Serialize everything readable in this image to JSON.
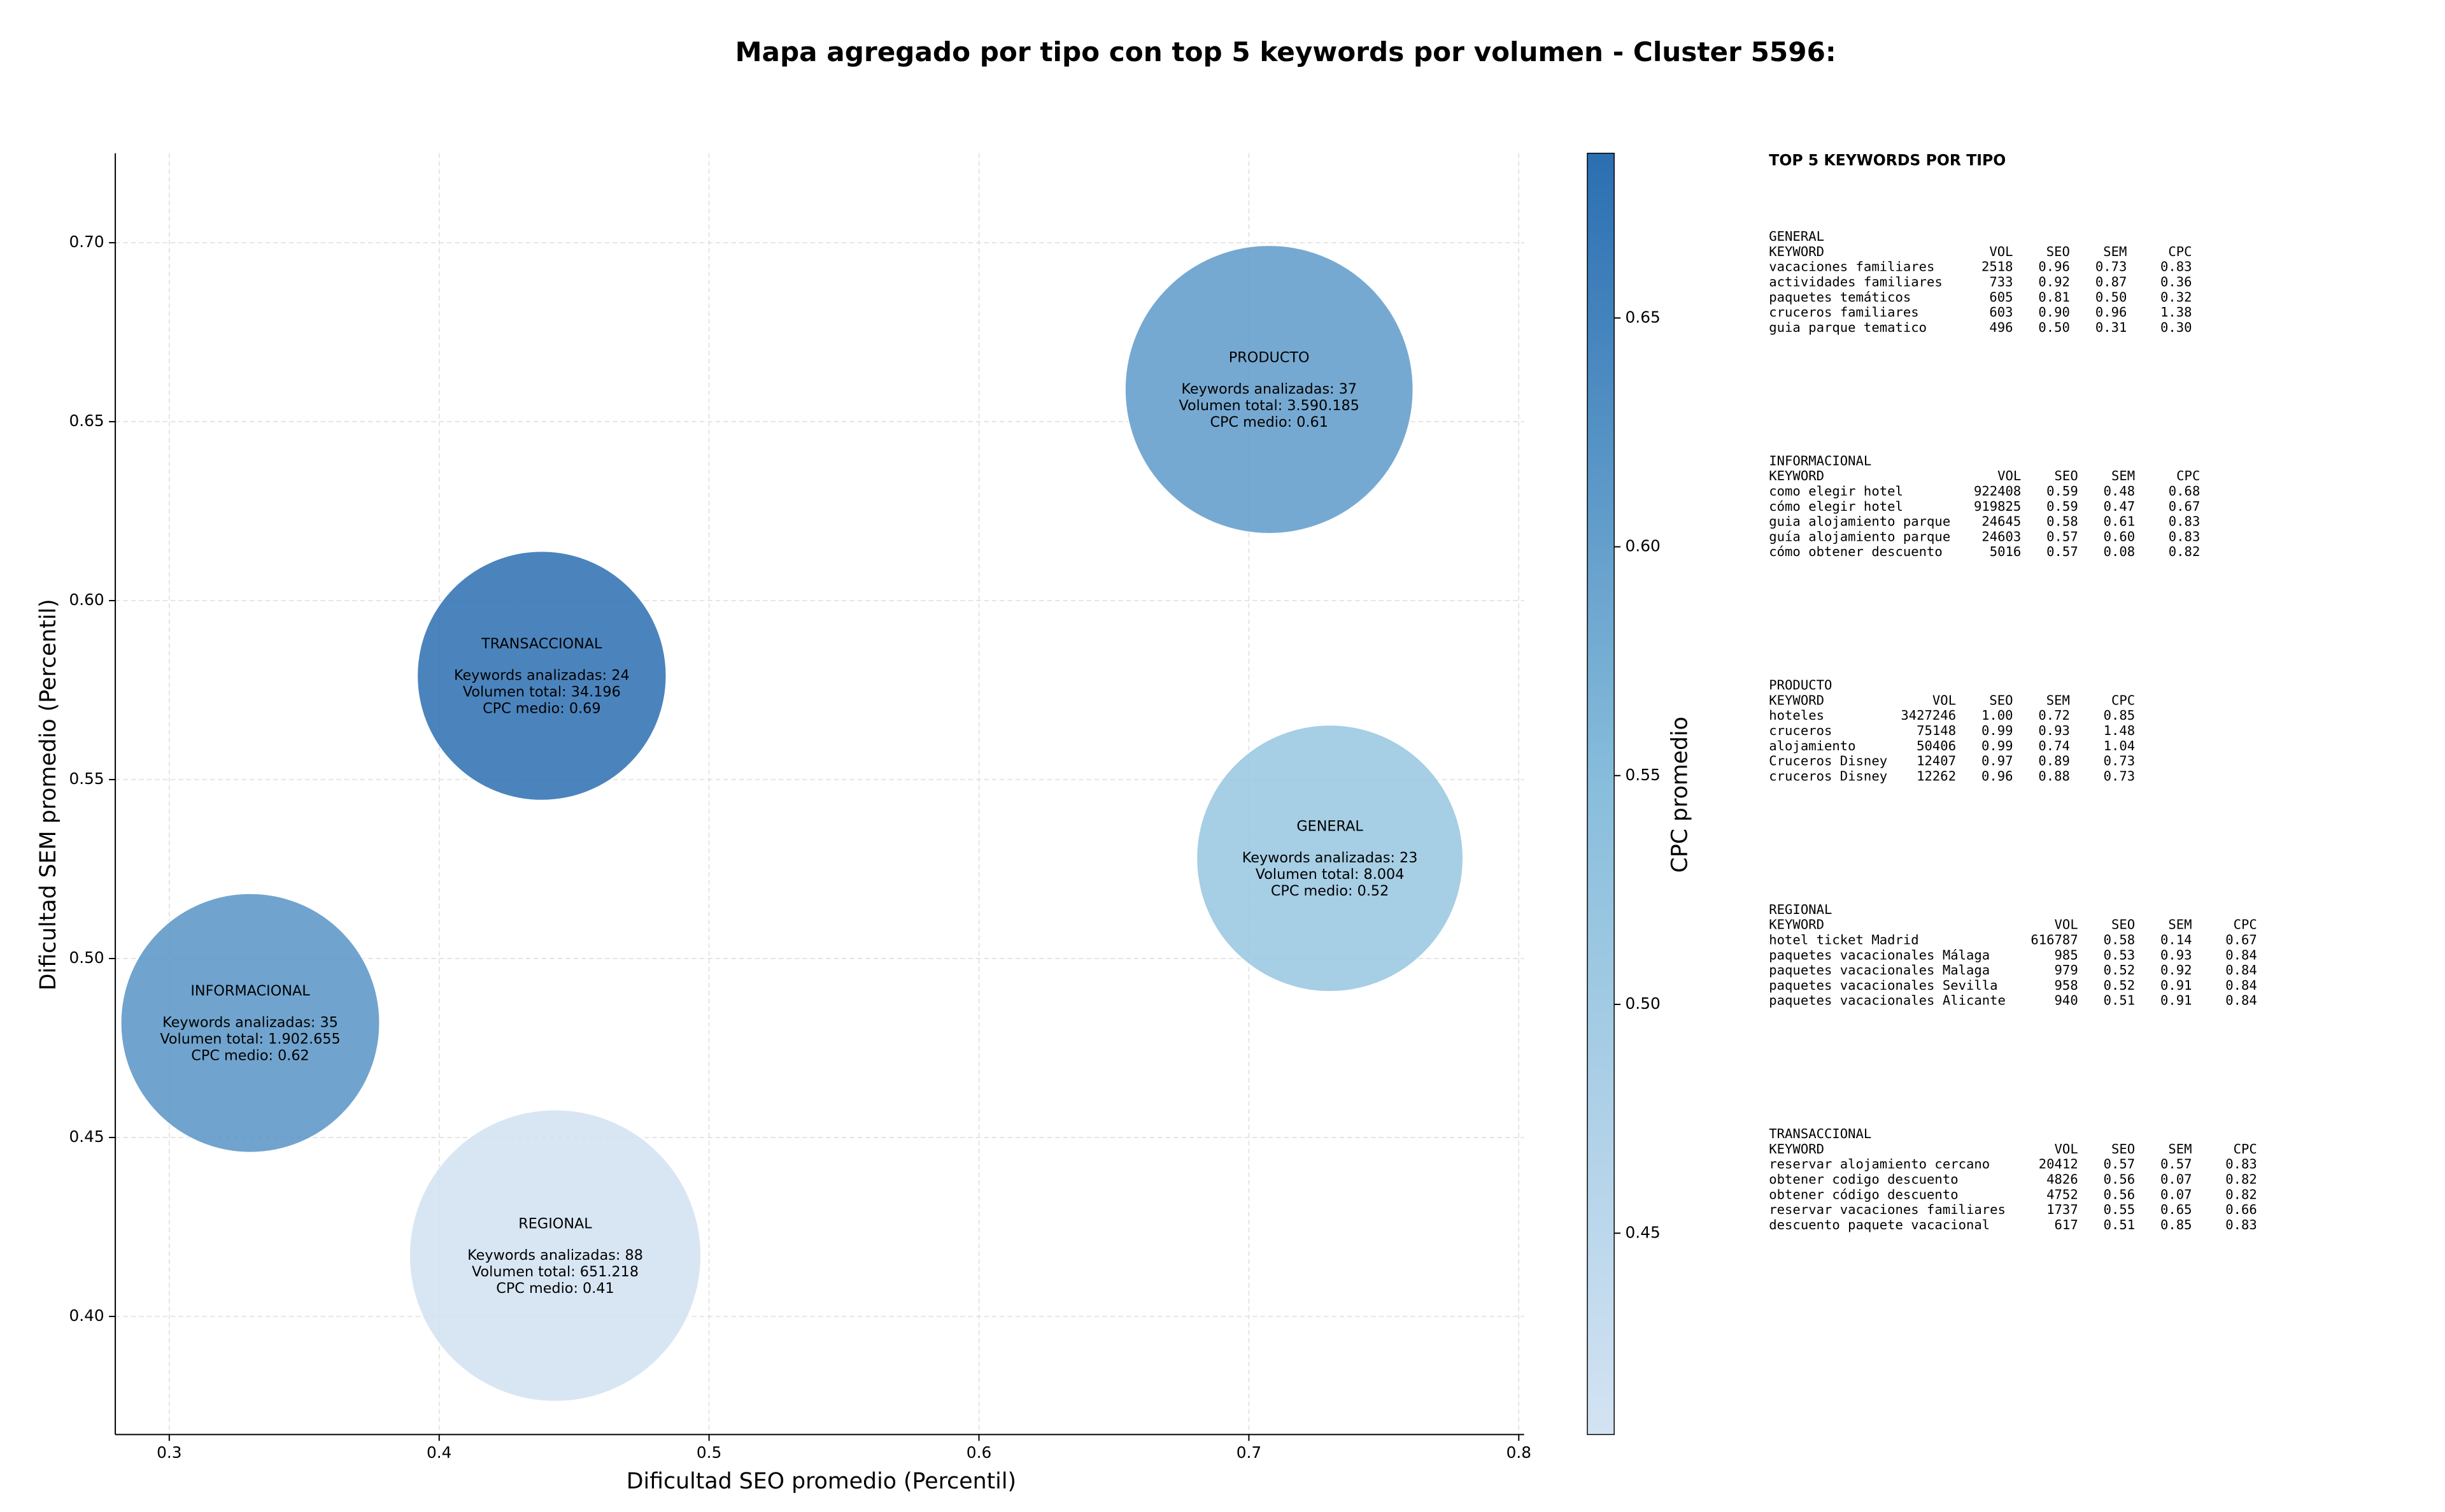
{
  "chart_data": {
    "type": "bubble",
    "title": "Mapa agregado por tipo con top 5 keywords por volumen - Cluster 5596:",
    "x_label": "Dificultad SEO promedio (Percentil)",
    "y_label": "Dificultad SEM promedio (Percentil)",
    "colorbar_label": "CPC promedio",
    "labels": [
      "PRODUCTO",
      "GENERAL",
      "TRANSACCIONAL",
      "INFORMACIONAL",
      "REGIONAL"
    ],
    "annotations": [
      [
        "Keywords analizadas: 37",
        "Volumen total: 3.590.185",
        "CPC medio: 0.61"
      ],
      [
        "Keywords analizadas: 23",
        "Volumen total: 8.004",
        "CPC medio: 0.52"
      ],
      [
        "Keywords analizadas: 24",
        "Volumen total: 34.196",
        "CPC medio: 0.69"
      ],
      [
        "Keywords analizadas: 35",
        "Volumen total: 1.902.655",
        "CPC medio: 0.62"
      ],
      [
        "Keywords analizadas: 88",
        "Volumen total: 651.218",
        "CPC medio: 0.41"
      ]
    ],
    "x": [
      0.7075,
      0.73,
      0.438,
      0.33,
      0.443
    ],
    "values": [
      0.659,
      0.528,
      0.579,
      0.482,
      0.417
    ],
    "sizes": [
      83,
      71,
      62,
      67,
      85
    ],
    "color_values": [
      0.61,
      0.52,
      0.69,
      0.62,
      0.41
    ],
    "colormap": [
      "#d3e3f3",
      "#89bedc",
      "#2b6fb2"
    ],
    "clim": [
      0.406,
      0.686
    ],
    "cticks": [
      0.45,
      {
        "value": 0.5,
        "label": "0.50"
      },
      0.55,
      {
        "value": 0.6,
        "label": "0.60"
      },
      0.65
    ],
    "xlim": [
      0.28,
      0.802
    ],
    "ylim": [
      0.367,
      0.725
    ],
    "xticks": [
      0.3,
      0.4,
      0.5,
      0.6,
      0.7,
      0.8
    ],
    "yticks": [
      {
        "value": 0.4,
        "label": "0.40"
      },
      0.45,
      {
        "value": 0.5,
        "label": "0.50"
      },
      0.55,
      {
        "value": 0.6,
        "label": "0.60"
      },
      0.65,
      {
        "value": 0.7,
        "label": "0.70"
      }
    ],
    "grid": true
  },
  "panel": {
    "title": "TOP 5 KEYWORDS POR TIPO",
    "sections": [
      {
        "name": "GENERAL",
        "header": [
          "KEYWORD",
          "VOL",
          "SEO",
          "SEM",
          "CPC"
        ],
        "rows": [
          [
            "vacaciones familiares",
            "2518",
            "0.96",
            "0.73",
            "0.83"
          ],
          [
            "actividades familiares",
            "733",
            "0.92",
            "0.87",
            "0.36"
          ],
          [
            "paquetes temáticos",
            "605",
            "0.81",
            "0.50",
            "0.32"
          ],
          [
            "cruceros familiares",
            "603",
            "0.90",
            "0.96",
            "1.38"
          ],
          [
            "guia parque tematico",
            "496",
            "0.50",
            "0.31",
            "0.30"
          ]
        ]
      },
      {
        "name": "INFORMACIONAL",
        "header": [
          "KEYWORD",
          "VOL",
          "SEO",
          "SEM",
          "CPC"
        ],
        "rows": [
          [
            "como elegir hotel",
            "922408",
            "0.59",
            "0.48",
            "0.68"
          ],
          [
            "cómo elegir hotel",
            "919825",
            "0.59",
            "0.47",
            "0.67"
          ],
          [
            "guia alojamiento parque",
            "24645",
            "0.58",
            "0.61",
            "0.83"
          ],
          [
            "guía alojamiento parque",
            "24603",
            "0.57",
            "0.60",
            "0.83"
          ],
          [
            "cómo obtener descuento",
            "5016",
            "0.57",
            "0.08",
            "0.82"
          ]
        ]
      },
      {
        "name": "PRODUCTO",
        "header": [
          "KEYWORD",
          "VOL",
          "SEO",
          "SEM",
          "CPC"
        ],
        "rows": [
          [
            "hoteles",
            "3427246",
            "1.00",
            "0.72",
            "0.85"
          ],
          [
            "cruceros",
            "75148",
            "0.99",
            "0.93",
            "1.48"
          ],
          [
            "alojamiento",
            "50406",
            "0.99",
            "0.74",
            "1.04"
          ],
          [
            "Cruceros Disney",
            "12407",
            "0.97",
            "0.89",
            "0.73"
          ],
          [
            "cruceros Disney",
            "12262",
            "0.96",
            "0.88",
            "0.73"
          ]
        ]
      },
      {
        "name": "REGIONAL",
        "header": [
          "KEYWORD",
          "VOL",
          "SEO",
          "SEM",
          "CPC"
        ],
        "rows": [
          [
            "hotel ticket Madrid",
            "616787",
            "0.58",
            "0.14",
            "0.67"
          ],
          [
            "paquetes vacacionales Málaga",
            "985",
            "0.53",
            "0.93",
            "0.84"
          ],
          [
            "paquetes vacacionales Malaga",
            "979",
            "0.52",
            "0.92",
            "0.84"
          ],
          [
            "paquetes vacacionales Sevilla",
            "958",
            "0.52",
            "0.91",
            "0.84"
          ],
          [
            "paquetes vacacionales Alicante",
            "940",
            "0.51",
            "0.91",
            "0.84"
          ]
        ]
      },
      {
        "name": "TRANSACCIONAL",
        "header": [
          "KEYWORD",
          "VOL",
          "SEO",
          "SEM",
          "CPC"
        ],
        "rows": [
          [
            "reservar alojamiento cercano",
            "20412",
            "0.57",
            "0.57",
            "0.83"
          ],
          [
            "obtener codigo descuento",
            "4826",
            "0.56",
            "0.07",
            "0.82"
          ],
          [
            "obtener código descuento",
            "4752",
            "0.56",
            "0.07",
            "0.82"
          ],
          [
            "reservar vacaciones familiares",
            "1737",
            "0.55",
            "0.65",
            "0.66"
          ],
          [
            "descuento paquete vacacional",
            "617",
            "0.51",
            "0.85",
            "0.83"
          ]
        ]
      }
    ]
  }
}
